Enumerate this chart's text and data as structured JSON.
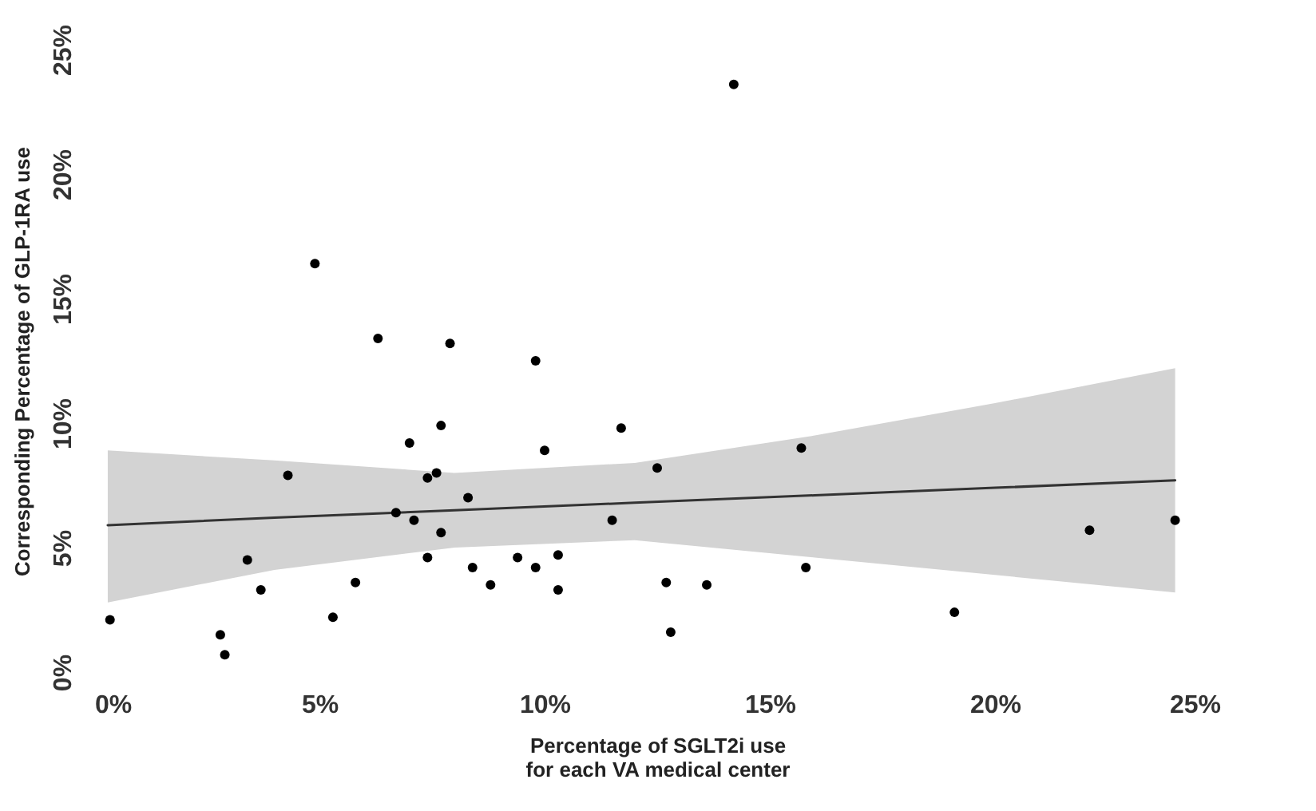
{
  "chart_data": {
    "type": "scatter",
    "xlabel": "Percentage of SGLT2i use\nfor each VA medical center",
    "ylabel": "Corresponding Percentage of GLP-1RA use",
    "xlim": [
      0,
      25
    ],
    "ylim": [
      0,
      25
    ],
    "xticks": [
      {
        "value": 0,
        "label": "0%"
      },
      {
        "value": 5,
        "label": "5%"
      },
      {
        "value": 10,
        "label": "10%"
      },
      {
        "value": 15,
        "label": "15%"
      },
      {
        "value": 20,
        "label": "20%"
      },
      {
        "value": 25,
        "label": "25%"
      }
    ],
    "yticks": [
      {
        "value": 0,
        "label": "0%"
      },
      {
        "value": 5,
        "label": "5%"
      },
      {
        "value": 10,
        "label": "10%"
      },
      {
        "value": 15,
        "label": "15%"
      },
      {
        "value": 20,
        "label": "20%"
      },
      {
        "value": 25,
        "label": "25%"
      }
    ],
    "series": [
      {
        "type": "line",
        "color": "#333333",
        "x": [
          0.3,
          4,
          8,
          12,
          16,
          20,
          24
        ],
        "values": [
          5.9,
          6.2,
          6.5,
          6.8,
          7.1,
          7.4,
          7.7
        ],
        "lower": [
          2.8,
          4.1,
          5.0,
          5.3,
          4.6,
          3.9,
          3.2
        ],
        "upper": [
          8.9,
          8.5,
          8.0,
          8.4,
          9.5,
          10.8,
          12.2
        ]
      },
      {
        "type": "scatter",
        "marker": "circle",
        "color": "#000000",
        "x": [
          0.35,
          2.8,
          2.9,
          3.4,
          3.7,
          4.3,
          4.9,
          5.3,
          5.8,
          6.3,
          6.7,
          7.0,
          7.1,
          7.4,
          7.4,
          7.7,
          7.7,
          7.9,
          7.6,
          8.3,
          8.4,
          8.8,
          9.4,
          9.8,
          9.8,
          10.0,
          10.3,
          10.3,
          11.5,
          11.7,
          12.5,
          12.7,
          12.8,
          13.6,
          14.2,
          15.7,
          15.8,
          19.1,
          22.1,
          24.0
        ],
        "values": [
          2.1,
          1.5,
          0.7,
          4.5,
          3.3,
          7.9,
          16.4,
          2.2,
          3.6,
          13.4,
          6.4,
          9.2,
          6.1,
          4.6,
          7.8,
          5.6,
          9.9,
          13.2,
          8.0,
          7.0,
          4.2,
          3.5,
          4.6,
          4.2,
          12.5,
          8.9,
          4.7,
          3.3,
          6.1,
          9.8,
          8.2,
          3.6,
          1.6,
          3.5,
          23.6,
          9.0,
          4.2,
          2.4,
          5.7,
          6.1
        ]
      }
    ]
  }
}
